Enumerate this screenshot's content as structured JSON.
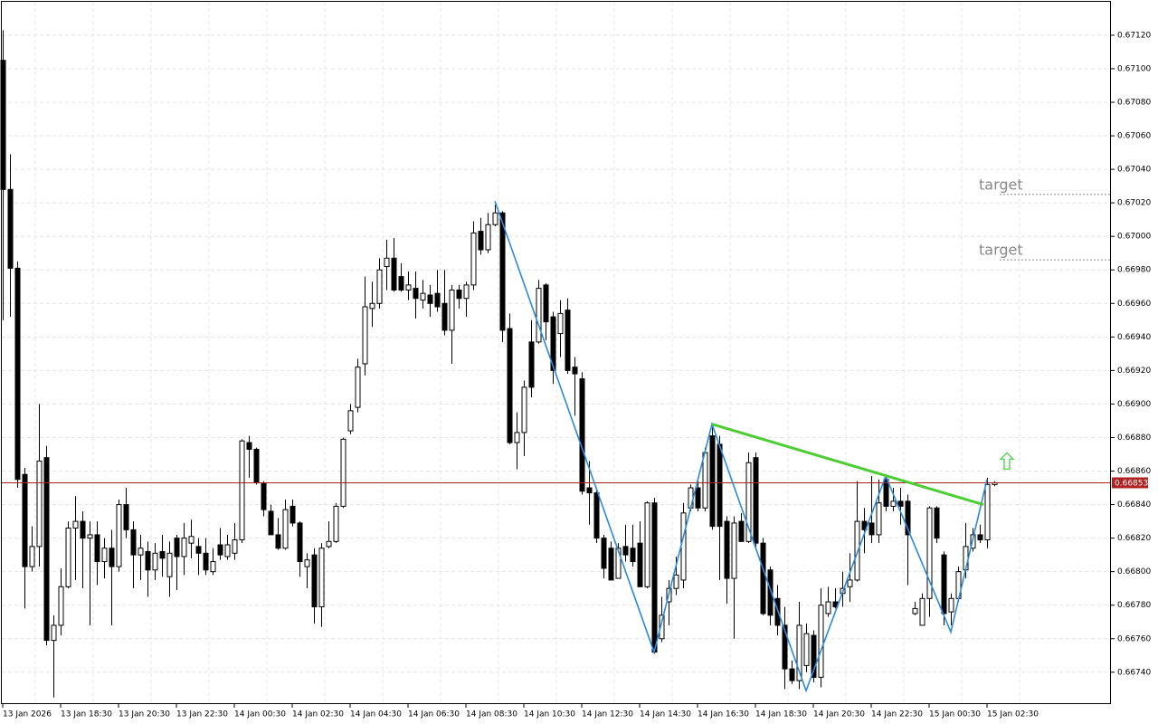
{
  "chart_data": {
    "type": "candlestick",
    "up_color": "#ffffff",
    "down_color": "#000000",
    "grid": true,
    "ylim": [
      0.66721,
      0.67141
    ],
    "yticks": [
      {
        "value": 0.6712,
        "label": "0.67120"
      },
      {
        "value": 0.671,
        "label": "0.67100"
      },
      {
        "value": 0.6708,
        "label": "0.67080"
      },
      {
        "value": 0.6706,
        "label": "0.67060"
      },
      {
        "value": 0.6704,
        "label": "0.67040"
      },
      {
        "value": 0.6702,
        "label": "0.67020"
      },
      {
        "value": 0.67,
        "label": "0.67000"
      },
      {
        "value": 0.6698,
        "label": "0.66980"
      },
      {
        "value": 0.6696,
        "label": "0.66960"
      },
      {
        "value": 0.6694,
        "label": "0.66940"
      },
      {
        "value": 0.6692,
        "label": "0.66920"
      },
      {
        "value": 0.669,
        "label": "0.66900"
      },
      {
        "value": 0.6688,
        "label": "0.66880"
      },
      {
        "value": 0.6686,
        "label": "0.66860"
      },
      {
        "value": 0.6684,
        "label": "0.66840"
      },
      {
        "value": 0.6682,
        "label": "0.66820"
      },
      {
        "value": 0.668,
        "label": "0.66800"
      },
      {
        "value": 0.6678,
        "label": "0.66780"
      },
      {
        "value": 0.6676,
        "label": "0.66760"
      },
      {
        "value": 0.6674,
        "label": "0.66740"
      }
    ],
    "xticks": [
      {
        "value": 0,
        "label": "13 Jan 2026"
      },
      {
        "value": 8,
        "label": "13 Jan 18:30"
      },
      {
        "value": 16,
        "label": "13 Jan 20:30"
      },
      {
        "value": 24,
        "label": "13 Jan 22:30"
      },
      {
        "value": 32,
        "label": "14 Jan 00:30"
      },
      {
        "value": 40,
        "label": "14 Jan 02:30"
      },
      {
        "value": 48,
        "label": "14 Jan 04:30"
      },
      {
        "value": 56,
        "label": "14 Jan 06:30"
      },
      {
        "value": 64,
        "label": "14 Jan 08:30"
      },
      {
        "value": 72,
        "label": "14 Jan 10:30"
      },
      {
        "value": 80,
        "label": "14 Jan 12:30"
      },
      {
        "value": 88,
        "label": "14 Jan 14:30"
      },
      {
        "value": 96,
        "label": "14 Jan 16:30"
      },
      {
        "value": 104,
        "label": "14 Jan 18:30"
      },
      {
        "value": 112,
        "label": "14 Jan 20:30"
      },
      {
        "value": 120,
        "label": "14 Jan 22:30"
      },
      {
        "value": 128,
        "label": "15 Jan 00:30"
      },
      {
        "value": 136,
        "label": "15 Jan 02:30"
      }
    ],
    "ohlc": [
      [
        0.67105,
        0.67123,
        0.6695,
        0.67028
      ],
      [
        0.67028,
        0.67049,
        0.66952,
        0.66981
      ],
      [
        0.66981,
        0.66985,
        0.6685,
        0.66855
      ],
      [
        0.66858,
        0.66862,
        0.66778,
        0.66803
      ],
      [
        0.66803,
        0.66827,
        0.668,
        0.66815
      ],
      [
        0.66815,
        0.669,
        0.66803,
        0.66866
      ],
      [
        0.66868,
        0.66875,
        0.66756,
        0.66759
      ],
      [
        0.66759,
        0.66774,
        0.66725,
        0.66768
      ],
      [
        0.66768,
        0.66802,
        0.66762,
        0.66791
      ],
      [
        0.66791,
        0.6683,
        0.6679,
        0.66826
      ],
      [
        0.66826,
        0.66845,
        0.66795,
        0.6683
      ],
      [
        0.6683,
        0.66836,
        0.6679,
        0.6682
      ],
      [
        0.6682,
        0.6683,
        0.66768,
        0.66822
      ],
      [
        0.66822,
        0.6683,
        0.66792,
        0.66806
      ],
      [
        0.66806,
        0.6682,
        0.66796,
        0.66814
      ],
      [
        0.66814,
        0.66825,
        0.66768,
        0.66803
      ],
      [
        0.66803,
        0.66843,
        0.668,
        0.6684
      ],
      [
        0.6684,
        0.6685,
        0.6682,
        0.66825
      ],
      [
        0.66825,
        0.6683,
        0.6679,
        0.6681
      ],
      [
        0.6681,
        0.66822,
        0.66795,
        0.66814
      ],
      [
        0.66812,
        0.66818,
        0.66785,
        0.66801
      ],
      [
        0.66801,
        0.66817,
        0.66795,
        0.66811
      ],
      [
        0.66812,
        0.66822,
        0.66797,
        0.66808
      ],
      [
        0.66797,
        0.66818,
        0.66785,
        0.66811
      ],
      [
        0.6682,
        0.66822,
        0.66789,
        0.66809
      ],
      [
        0.66809,
        0.66829,
        0.66798,
        0.6682
      ],
      [
        0.66817,
        0.66831,
        0.66808,
        0.66821
      ],
      [
        0.66815,
        0.6682,
        0.66798,
        0.66811
      ],
      [
        0.66811,
        0.6682,
        0.66798,
        0.66801
      ],
      [
        0.668,
        0.66814,
        0.66798,
        0.66806
      ],
      [
        0.66816,
        0.66826,
        0.66807,
        0.6681
      ],
      [
        0.66809,
        0.66822,
        0.66807,
        0.66816
      ],
      [
        0.66811,
        0.66829,
        0.66807,
        0.66819
      ],
      [
        0.66819,
        0.66879,
        0.66817,
        0.66878
      ],
      [
        0.66877,
        0.66881,
        0.66856,
        0.66873
      ],
      [
        0.66873,
        0.66874,
        0.66852,
        0.66853
      ],
      [
        0.66853,
        0.66854,
        0.66833,
        0.66837
      ],
      [
        0.66836,
        0.6684,
        0.66822,
        0.66822
      ],
      [
        0.66822,
        0.66832,
        0.66813,
        0.66814
      ],
      [
        0.66814,
        0.66843,
        0.66813,
        0.66837
      ],
      [
        0.66839,
        0.66843,
        0.66827,
        0.66829
      ],
      [
        0.66829,
        0.6683,
        0.66797,
        0.66806
      ],
      [
        0.66803,
        0.66811,
        0.6679,
        0.66807
      ],
      [
        0.6681,
        0.66814,
        0.66769,
        0.66779
      ],
      [
        0.66779,
        0.66817,
        0.66767,
        0.66814
      ],
      [
        0.66815,
        0.6683,
        0.66814,
        0.66818
      ],
      [
        0.66818,
        0.66841,
        0.66817,
        0.66839
      ],
      [
        0.66839,
        0.6688,
        0.66838,
        0.66879
      ],
      [
        0.66884,
        0.669,
        0.66882,
        0.66896
      ],
      [
        0.66898,
        0.66927,
        0.66895,
        0.66922
      ],
      [
        0.66924,
        0.66976,
        0.66917,
        0.66958
      ],
      [
        0.66957,
        0.66973,
        0.66946,
        0.6696
      ],
      [
        0.6696,
        0.66987,
        0.66957,
        0.6698
      ],
      [
        0.66982,
        0.66998,
        0.66968,
        0.66987
      ],
      [
        0.66987,
        0.66999,
        0.66967,
        0.66968
      ],
      [
        0.66976,
        0.66984,
        0.66967,
        0.66968
      ],
      [
        0.66968,
        0.66979,
        0.66962,
        0.66971
      ],
      [
        0.66969,
        0.66979,
        0.66951,
        0.66963
      ],
      [
        0.66962,
        0.66974,
        0.66957,
        0.66966
      ],
      [
        0.66965,
        0.66971,
        0.66952,
        0.6696
      ],
      [
        0.66966,
        0.6698,
        0.66955,
        0.66958
      ],
      [
        0.6696,
        0.6698,
        0.66941,
        0.66944
      ],
      [
        0.66944,
        0.66971,
        0.66924,
        0.66968
      ],
      [
        0.66968,
        0.66971,
        0.66957,
        0.66963
      ],
      [
        0.66963,
        0.66973,
        0.66952,
        0.66971
      ],
      [
        0.66971,
        0.67009,
        0.66968,
        0.67002
      ],
      [
        0.67003,
        0.67011,
        0.66989,
        0.66992
      ],
      [
        0.66992,
        0.67014,
        0.6699,
        0.67007
      ],
      [
        0.67007,
        0.67019,
        0.67006,
        0.67014
      ],
      [
        0.67014,
        0.67015,
        0.66937,
        0.66944
      ],
      [
        0.66945,
        0.66954,
        0.66876,
        0.66877
      ],
      [
        0.66877,
        0.66895,
        0.66861,
        0.66883
      ],
      [
        0.66883,
        0.66914,
        0.66869,
        0.6691
      ],
      [
        0.66937,
        0.6695,
        0.66904,
        0.6691
      ],
      [
        0.66937,
        0.66974,
        0.66936,
        0.66969
      ],
      [
        0.66971,
        0.66972,
        0.66938,
        0.66949
      ],
      [
        0.66952,
        0.66955,
        0.66912,
        0.6692
      ],
      [
        0.66942,
        0.66962,
        0.66928,
        0.66954
      ],
      [
        0.66956,
        0.66963,
        0.66918,
        0.6692
      ],
      [
        0.66922,
        0.66928,
        0.66893,
        0.66918
      ],
      [
        0.66915,
        0.66919,
        0.66846,
        0.66848
      ],
      [
        0.6685,
        0.66866,
        0.66828,
        0.66847
      ],
      [
        0.66847,
        0.66849,
        0.66817,
        0.6682
      ],
      [
        0.6682,
        0.66822,
        0.66796,
        0.66802
      ],
      [
        0.66814,
        0.66818,
        0.66795,
        0.66795
      ],
      [
        0.66796,
        0.66817,
        0.66796,
        0.66814
      ],
      [
        0.66815,
        0.66828,
        0.66806,
        0.6681
      ],
      [
        0.66814,
        0.66828,
        0.66803,
        0.66806
      ],
      [
        0.66817,
        0.6683,
        0.66791,
        0.66791
      ],
      [
        0.66791,
        0.66842,
        0.6679,
        0.66841
      ],
      [
        0.66841,
        0.66844,
        0.66751,
        0.66752
      ],
      [
        0.6676,
        0.66785,
        0.66758,
        0.66774
      ],
      [
        0.66782,
        0.66795,
        0.66768,
        0.6679
      ],
      [
        0.6679,
        0.66809,
        0.66786,
        0.66798
      ],
      [
        0.66795,
        0.66841,
        0.6679,
        0.66835
      ],
      [
        0.66838,
        0.66852,
        0.66836,
        0.6685
      ],
      [
        0.6685,
        0.66854,
        0.66836,
        0.66838
      ],
      [
        0.66838,
        0.66874,
        0.66836,
        0.66871
      ],
      [
        0.66881,
        0.66886,
        0.66825,
        0.66827
      ],
      [
        0.66876,
        0.66881,
        0.66795,
        0.66827
      ],
      [
        0.6683,
        0.66833,
        0.66781,
        0.66796
      ],
      [
        0.66796,
        0.66833,
        0.6676,
        0.66829
      ],
      [
        0.6683,
        0.66835,
        0.66818,
        0.66818
      ],
      [
        0.66818,
        0.66871,
        0.66817,
        0.66865
      ],
      [
        0.66868,
        0.66871,
        0.66814,
        0.66817
      ],
      [
        0.66817,
        0.6682,
        0.66774,
        0.66775
      ],
      [
        0.66801,
        0.66803,
        0.66768,
        0.66774
      ],
      [
        0.66784,
        0.66792,
        0.66762,
        0.66768
      ],
      [
        0.66768,
        0.66779,
        0.6673,
        0.66742
      ],
      [
        0.66742,
        0.66747,
        0.66733,
        0.66735
      ],
      [
        0.66735,
        0.66782,
        0.6673,
        0.66768
      ],
      [
        0.66744,
        0.66769,
        0.6674,
        0.66763
      ],
      [
        0.66762,
        0.66765,
        0.66734,
        0.66737
      ],
      [
        0.66737,
        0.6679,
        0.66731,
        0.6678
      ],
      [
        0.66775,
        0.66791,
        0.66773,
        0.66782
      ],
      [
        0.66782,
        0.6679,
        0.66778,
        0.66779
      ],
      [
        0.66787,
        0.668,
        0.66779,
        0.6679
      ],
      [
        0.66791,
        0.66811,
        0.66782,
        0.66795
      ],
      [
        0.66795,
        0.66854,
        0.66794,
        0.6683
      ],
      [
        0.6683,
        0.66838,
        0.66811,
        0.66825
      ],
      [
        0.66829,
        0.66857,
        0.66817,
        0.66822
      ],
      [
        0.66822,
        0.66855,
        0.66817,
        0.66841
      ],
      [
        0.66855,
        0.66857,
        0.66836,
        0.66839
      ],
      [
        0.66839,
        0.6685,
        0.66836,
        0.66842
      ],
      [
        0.66842,
        0.6685,
        0.66828,
        0.66839
      ],
      [
        0.66842,
        0.66846,
        0.66792,
        0.66822
      ],
      [
        0.66775,
        0.66782,
        0.66774,
        0.66778
      ],
      [
        0.66768,
        0.66787,
        0.66768,
        0.66784
      ],
      [
        0.66784,
        0.66839,
        0.66773,
        0.66838
      ],
      [
        0.66838,
        0.66839,
        0.66817,
        0.6682
      ],
      [
        0.6681,
        0.66812,
        0.66768,
        0.66775
      ],
      [
        0.66776,
        0.66787,
        0.66768,
        0.66784
      ],
      [
        0.66784,
        0.66803,
        0.66782,
        0.668
      ],
      [
        0.66801,
        0.66829,
        0.66796,
        0.66815
      ],
      [
        0.66814,
        0.66826,
        0.66812,
        0.66822
      ],
      [
        0.66822,
        0.66828,
        0.66817,
        0.66819
      ],
      [
        0.66819,
        0.66856,
        0.66814,
        0.66852
      ],
      [
        0.66852,
        0.66854,
        0.66851,
        0.66853
      ]
    ],
    "zigzag": {
      "color": "#2a8ae0",
      "x": [
        68,
        90,
        98,
        111,
        122,
        131,
        136
      ],
      "values": [
        0.67021,
        0.66752,
        0.66888,
        0.66729,
        0.66857,
        0.66764,
        0.66855
      ]
    },
    "neckline": {
      "color": "#4ccd32",
      "x": [
        98,
        135.5
      ],
      "values": [
        0.66888,
        0.6684
      ]
    },
    "targets": [
      {
        "text": "target",
        "value": 0.67025
      },
      {
        "text": "target",
        "value": 0.66986
      }
    ],
    "current_price": 0.66853,
    "current_price_color": "#b02020",
    "signal_arrow": {
      "x": 138.75,
      "value": 0.66866,
      "color": "#5fd35f"
    }
  }
}
